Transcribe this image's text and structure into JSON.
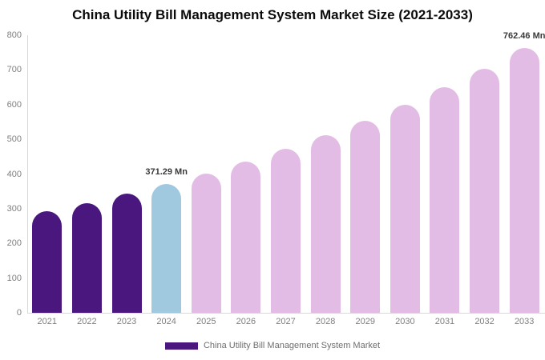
{
  "title": "China Utility Bill Management System Market Size (2021-2033)",
  "legend": {
    "label": "China Utility Bill Management System Market",
    "swatch_color": "#4a177e"
  },
  "colors": {
    "historical": "#4a177e",
    "base_year": "#a0c9df",
    "forecast": "#e3bce5",
    "axis_line": "#d9d9d9",
    "tick_label": "#7f7f7f",
    "annotation": "#3a3a3a",
    "legend_text": "#6e6e6e",
    "title_text": "#0b0b0b",
    "background": "#ffffff"
  },
  "chart_data": {
    "type": "bar",
    "title": "China Utility Bill Management System Market Size (2021-2033)",
    "unit": "Mn",
    "categories": [
      "2021",
      "2022",
      "2023",
      "2024",
      "2025",
      "2026",
      "2027",
      "2028",
      "2029",
      "2030",
      "2031",
      "2032",
      "2033"
    ],
    "values": [
      292,
      316,
      343,
      371.29,
      402,
      436,
      472,
      511,
      554,
      600,
      650,
      704,
      762.46
    ],
    "bar_color_keys": [
      "historical",
      "historical",
      "historical",
      "base_year",
      "forecast",
      "forecast",
      "forecast",
      "forecast",
      "forecast",
      "forecast",
      "forecast",
      "forecast",
      "forecast"
    ],
    "ylim": [
      0,
      800
    ],
    "yticks": [
      0,
      100,
      200,
      300,
      400,
      500,
      600,
      700,
      800
    ],
    "xlabel": "",
    "ylabel": "",
    "grid": false,
    "legend_position": "bottom",
    "legend_entries": [
      "China Utility Bill Management System Market"
    ],
    "annotations": [
      {
        "category": "2024",
        "text": "371.29 Mn"
      },
      {
        "category": "2033",
        "text": "762.46 Mn"
      }
    ]
  }
}
